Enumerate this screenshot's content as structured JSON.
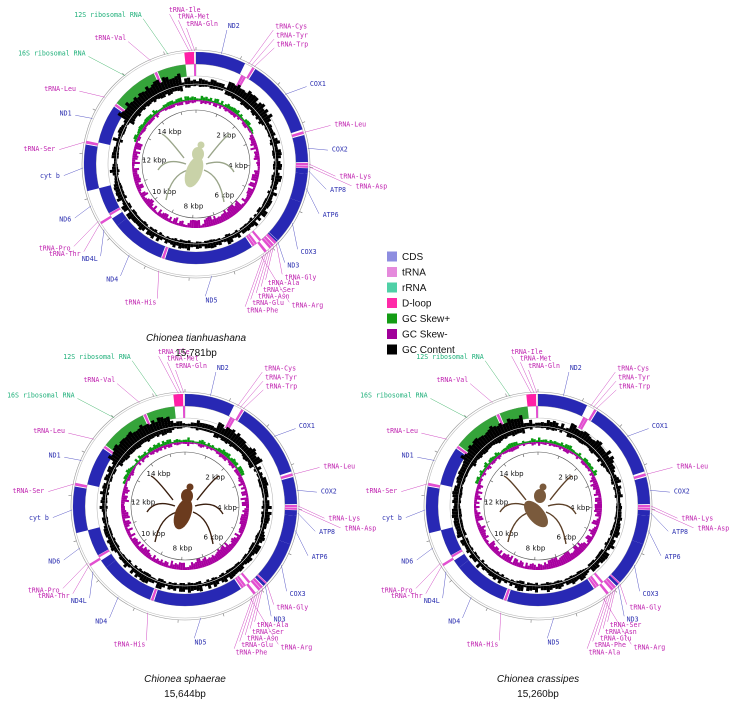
{
  "colors": {
    "cds": "#2828b4",
    "cds_text": "#2b2fb0",
    "trna": "#e24fd0",
    "trna_text": "#c023b0",
    "rrna": "#35a43a",
    "rrna_text": "#1fb07a",
    "dloop": "#ff1fa6",
    "gc_pos": "#0a9a12",
    "gc_neg": "#a800a0",
    "gc_content": "#000000"
  },
  "legend": [
    {
      "label": "CDS",
      "color": "#8d8de0"
    },
    {
      "label": "tRNA",
      "color": "#e58adc"
    },
    {
      "label": "rRNA",
      "color": "#4fd0a6"
    },
    {
      "label": "D-loop",
      "color": "#ff2aa8"
    },
    {
      "label": "GC Skew+",
      "color": "#139c14"
    },
    {
      "label": "GC Skew-",
      "color": "#a0009a"
    },
    {
      "label": "GC Content",
      "color": "#000000"
    }
  ],
  "maps": [
    {
      "species": "Chionea tianhuashana",
      "length_label": "15,781bp",
      "kbp_labels": [
        "2 kbp",
        "4 kbp",
        "6 kbp",
        "8 kbp",
        "10 kbp",
        "12 kbp",
        "14 kbp"
      ],
      "genes": [
        {
          "name": "tRNA-Ile",
          "type": "trna"
        },
        {
          "name": "tRNA-Met",
          "type": "trna"
        },
        {
          "name": "tRNA-Gln",
          "type": "trna"
        },
        {
          "name": "ND2",
          "type": "cds"
        },
        {
          "name": "tRNA-Cys",
          "type": "trna"
        },
        {
          "name": "tRNA-Tyr",
          "type": "trna"
        },
        {
          "name": "tRNA-Trp",
          "type": "trna"
        },
        {
          "name": "COX1",
          "type": "cds"
        },
        {
          "name": "tRNA-Leu",
          "type": "trna"
        },
        {
          "name": "COX2",
          "type": "cds"
        },
        {
          "name": "tRNA-Lys",
          "type": "trna"
        },
        {
          "name": "tRNA-Asp",
          "type": "trna"
        },
        {
          "name": "ATP8",
          "type": "cds"
        },
        {
          "name": "ATP6",
          "type": "cds"
        },
        {
          "name": "COX3",
          "type": "cds"
        },
        {
          "name": "tRNA-Gly",
          "type": "trna"
        },
        {
          "name": "ND3",
          "type": "cds"
        },
        {
          "name": "tRNA-Ala",
          "type": "trna"
        },
        {
          "name": "tRNA-Ser",
          "type": "trna"
        },
        {
          "name": "tRNA-Asn",
          "type": "trna"
        },
        {
          "name": "tRNA-Glu",
          "type": "trna"
        },
        {
          "name": "tRNA-Phe",
          "type": "trna"
        },
        {
          "name": "tRNA-Arg",
          "type": "trna"
        },
        {
          "name": "ND5",
          "type": "cds"
        },
        {
          "name": "tRNA-His",
          "type": "trna"
        },
        {
          "name": "ND4",
          "type": "cds"
        },
        {
          "name": "ND4L",
          "type": "cds"
        },
        {
          "name": "tRNA-Thr",
          "type": "trna"
        },
        {
          "name": "tRNA-Pro",
          "type": "trna"
        },
        {
          "name": "ND6",
          "type": "cds"
        },
        {
          "name": "cyt b",
          "type": "cds"
        },
        {
          "name": "tRNA-Ser",
          "type": "trna"
        },
        {
          "name": "ND1",
          "type": "cds"
        },
        {
          "name": "tRNA-Leu",
          "type": "trna"
        },
        {
          "name": "16S ribosomal RNA",
          "type": "rrna"
        },
        {
          "name": "tRNA-Val",
          "type": "trna"
        },
        {
          "name": "12S ribosomal RNA",
          "type": "rrna"
        }
      ],
      "photo": "insect-photo-pale"
    },
    {
      "species": "Chionea sphaerae",
      "length_label": "15,644bp",
      "kbp_labels": [
        "2 kbp",
        "4 kbp",
        "6 kbp",
        "8 kbp",
        "10 kbp",
        "12 kbp",
        "14 kbp"
      ],
      "genes": [
        {
          "name": "tRNA-Ile",
          "type": "trna"
        },
        {
          "name": "tRNA-Met",
          "type": "trna"
        },
        {
          "name": "tRNA-Gln",
          "type": "trna"
        },
        {
          "name": "ND2",
          "type": "cds"
        },
        {
          "name": "tRNA-Cys",
          "type": "trna"
        },
        {
          "name": "tRNA-Tyr",
          "type": "trna"
        },
        {
          "name": "tRNA-Trp",
          "type": "trna"
        },
        {
          "name": "COX1",
          "type": "cds"
        },
        {
          "name": "tRNA-Leu",
          "type": "trna"
        },
        {
          "name": "COX2",
          "type": "cds"
        },
        {
          "name": "tRNA-Lys",
          "type": "trna"
        },
        {
          "name": "tRNA-Asp",
          "type": "trna"
        },
        {
          "name": "ATP8",
          "type": "cds"
        },
        {
          "name": "ATP6",
          "type": "cds"
        },
        {
          "name": "COX3",
          "type": "cds"
        },
        {
          "name": "ND3",
          "type": "cds"
        },
        {
          "name": "tRNA-Gly",
          "type": "trna"
        },
        {
          "name": "tRNA-Ala",
          "type": "trna"
        },
        {
          "name": "tRNA-Ser",
          "type": "trna"
        },
        {
          "name": "tRNA-Asn",
          "type": "trna"
        },
        {
          "name": "tRNA-Glu",
          "type": "trna"
        },
        {
          "name": "tRNA-Phe",
          "type": "trna"
        },
        {
          "name": "tRNA-Arg",
          "type": "trna"
        },
        {
          "name": "ND5",
          "type": "cds"
        },
        {
          "name": "tRNA-His",
          "type": "trna"
        },
        {
          "name": "ND4",
          "type": "cds"
        },
        {
          "name": "ND4L",
          "type": "cds"
        },
        {
          "name": "tRNA-Thr",
          "type": "trna"
        },
        {
          "name": "tRNA-Pro",
          "type": "trna"
        },
        {
          "name": "ND6",
          "type": "cds"
        },
        {
          "name": "cyt b",
          "type": "cds"
        },
        {
          "name": "tRNA-Ser",
          "type": "trna"
        },
        {
          "name": "ND1",
          "type": "cds"
        },
        {
          "name": "tRNA-Leu",
          "type": "trna"
        },
        {
          "name": "16S ribosomal RNA",
          "type": "rrna"
        },
        {
          "name": "tRNA-Val",
          "type": "trna"
        },
        {
          "name": "12S ribosomal RNA",
          "type": "rrna"
        }
      ],
      "photo": "insect-photo-dark"
    },
    {
      "species": "Chionea crassipes",
      "length_label": "15,260bp",
      "kbp_labels": [
        "2 kbp",
        "4 kbp",
        "6 kbp",
        "8 kbp",
        "10 kbp",
        "12 kbp",
        "14 kbp"
      ],
      "genes": [
        {
          "name": "tRNA-Ile",
          "type": "trna"
        },
        {
          "name": "tRNA-Met",
          "type": "trna"
        },
        {
          "name": "tRNA-Gln",
          "type": "trna"
        },
        {
          "name": "ND2",
          "type": "cds"
        },
        {
          "name": "tRNA-Cys",
          "type": "trna"
        },
        {
          "name": "tRNA-Tyr",
          "type": "trna"
        },
        {
          "name": "tRNA-Trp",
          "type": "trna"
        },
        {
          "name": "COX1",
          "type": "cds"
        },
        {
          "name": "tRNA-Leu",
          "type": "trna"
        },
        {
          "name": "COX2",
          "type": "cds"
        },
        {
          "name": "tRNA-Lys",
          "type": "trna"
        },
        {
          "name": "tRNA-Asp",
          "type": "trna"
        },
        {
          "name": "ATP8",
          "type": "cds"
        },
        {
          "name": "ATP6",
          "type": "cds"
        },
        {
          "name": "COX3",
          "type": "cds"
        },
        {
          "name": "ND3",
          "type": "cds"
        },
        {
          "name": "tRNA-Gly",
          "type": "trna"
        },
        {
          "name": "tRNA-Ser",
          "type": "trna"
        },
        {
          "name": "tRNA-Asn",
          "type": "trna"
        },
        {
          "name": "tRNA-Glu",
          "type": "trna"
        },
        {
          "name": "tRNA-Phe",
          "type": "trna"
        },
        {
          "name": "tRNA-Ala",
          "type": "trna"
        },
        {
          "name": "tRNA-Arg",
          "type": "trna"
        },
        {
          "name": "ND5",
          "type": "cds"
        },
        {
          "name": "tRNA-His",
          "type": "trna"
        },
        {
          "name": "ND4",
          "type": "cds"
        },
        {
          "name": "ND4L",
          "type": "cds"
        },
        {
          "name": "tRNA-Thr",
          "type": "trna"
        },
        {
          "name": "tRNA-Pro",
          "type": "trna"
        },
        {
          "name": "ND6",
          "type": "cds"
        },
        {
          "name": "cyt b",
          "type": "cds"
        },
        {
          "name": "tRNA-Ser",
          "type": "trna"
        },
        {
          "name": "ND1",
          "type": "cds"
        },
        {
          "name": "tRNA-Leu",
          "type": "trna"
        },
        {
          "name": "16S ribosomal RNA",
          "type": "rrna"
        },
        {
          "name": "tRNA-Val",
          "type": "trna"
        },
        {
          "name": "12S ribosomal RNA",
          "type": "rrna"
        }
      ],
      "photo": "insect-photo-brown"
    }
  ]
}
